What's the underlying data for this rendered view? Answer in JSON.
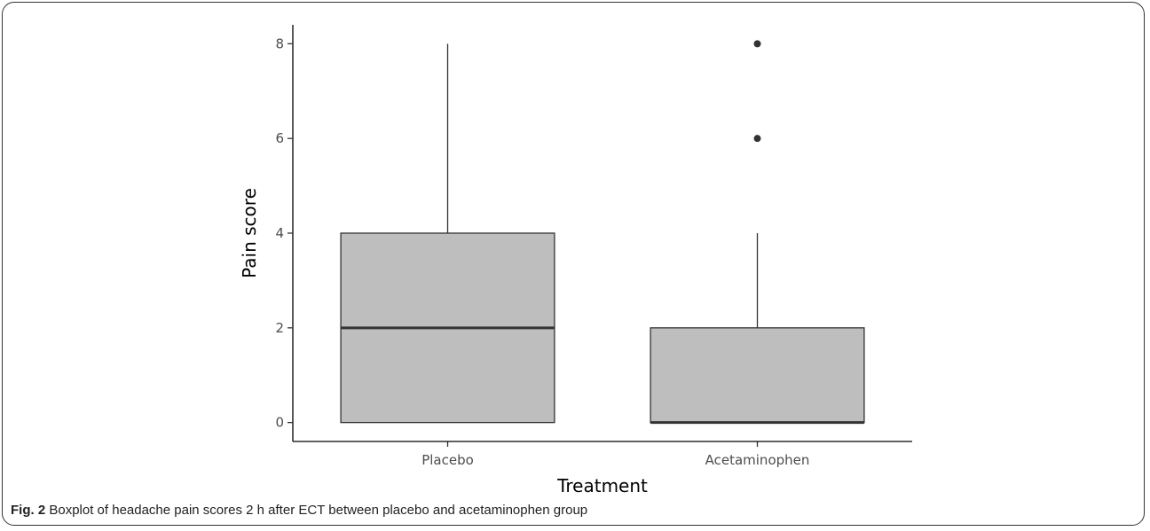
{
  "chart_data": {
    "type": "boxplot",
    "xlabel": "Treatment",
    "ylabel": "Pain score",
    "ylim": [
      -0.4,
      8.4
    ],
    "yticks": [
      0,
      2,
      4,
      6,
      8
    ],
    "categories": [
      "Placebo",
      "Acetaminophen"
    ],
    "boxes": [
      {
        "name": "Placebo",
        "min": 0,
        "q1": 0,
        "median": 2,
        "q3": 4,
        "max": 8,
        "outliers": []
      },
      {
        "name": "Acetaminophen",
        "min": 0,
        "q1": 0,
        "median": 0,
        "q3": 2,
        "max": 4,
        "outliers": [
          6,
          8
        ]
      }
    ],
    "colors": {
      "box_fill": "#bebebe",
      "line": "#333333",
      "outlier": "#333333"
    },
    "grid": false
  },
  "caption": {
    "label": "Fig. 2",
    "text": "Boxplot of headache pain scores 2 h after ECT between placebo and acetaminophen group"
  }
}
